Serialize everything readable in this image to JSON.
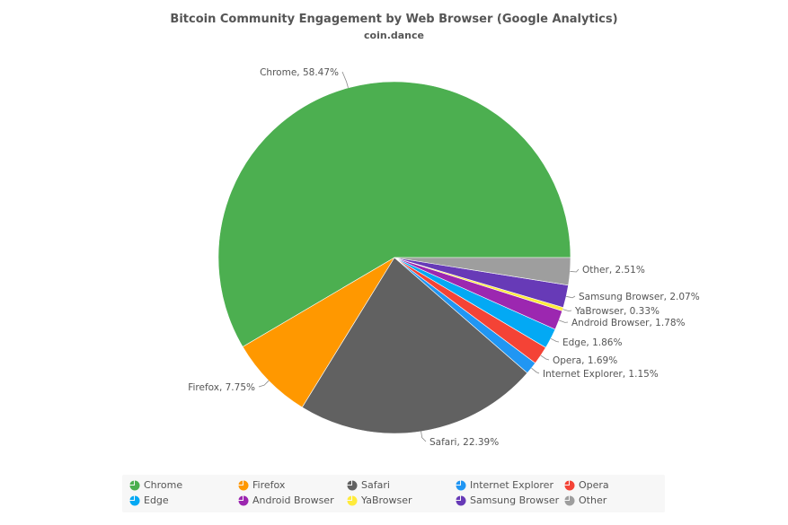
{
  "chart_data": {
    "type": "pie",
    "title": "Bitcoin Community Engagement by Web Browser (Google Analytics)",
    "subtitle": "coin.dance",
    "start_angle_deg": 0,
    "direction": "counterclockwise",
    "slices": [
      {
        "name": "Chrome",
        "value": 58.47,
        "label": "Chrome, 58.47%",
        "color": "#4caf50"
      },
      {
        "name": "Firefox",
        "value": 7.75,
        "label": "Firefox, 7.75%",
        "color": "#ff9800"
      },
      {
        "name": "Safari",
        "value": 22.39,
        "label": "Safari, 22.39%",
        "color": "#616161"
      },
      {
        "name": "Internet Explorer",
        "value": 1.15,
        "label": "Internet Explorer, 1.15%",
        "color": "#2196f3"
      },
      {
        "name": "Opera",
        "value": 1.69,
        "label": "Opera, 1.69%",
        "color": "#f44336"
      },
      {
        "name": "Edge",
        "value": 1.86,
        "label": "Edge, 1.86%",
        "color": "#03a9f4"
      },
      {
        "name": "Android Browser",
        "value": 1.78,
        "label": "Android Browser, 1.78%",
        "color": "#9c27b0"
      },
      {
        "name": "YaBrowser",
        "value": 0.33,
        "label": "YaBrowser, 0.33%",
        "color": "#ffeb3b"
      },
      {
        "name": "Samsung Browser",
        "value": 2.07,
        "label": "Samsung Browser, 2.07%",
        "color": "#673ab7"
      },
      {
        "name": "Other",
        "value": 2.51,
        "label": "Other, 2.51%",
        "color": "#9e9e9e"
      }
    ],
    "legend": {
      "placement": "bottom",
      "items": [
        "Chrome",
        "Firefox",
        "Safari",
        "Internet Explorer",
        "Opera",
        "Edge",
        "Android Browser",
        "YaBrowser",
        "Samsung Browser",
        "Other"
      ]
    }
  }
}
